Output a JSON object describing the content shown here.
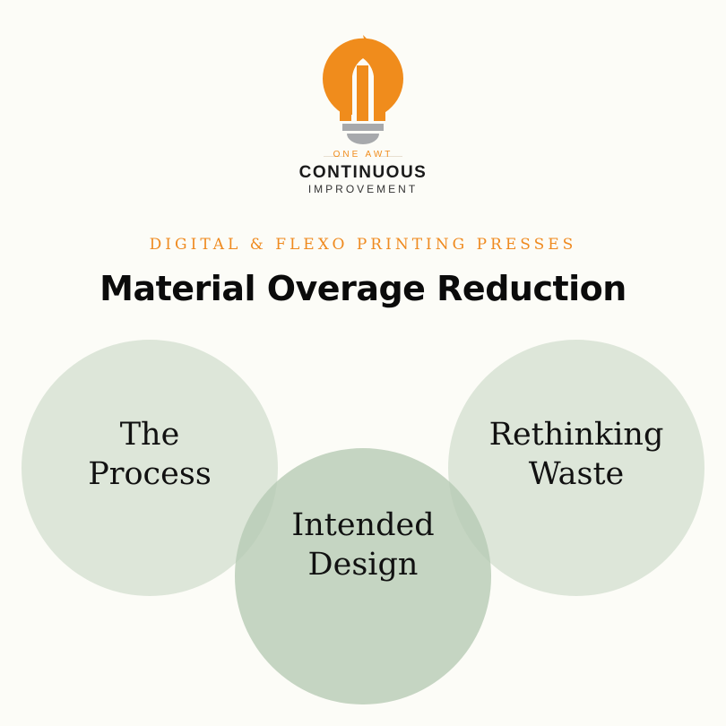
{
  "logo": {
    "small": "ONE AWT",
    "big": "CONTINUOUS",
    "sub": "IMPROVEMENT",
    "colors": {
      "orange": "#f08c1c",
      "gray": "#a7a9ac"
    }
  },
  "header": {
    "kicker": "DIGITAL & FLEXO PRINTING PRESSES",
    "title": "Material Overage Reduction",
    "kicker_color": "#ef8a1f"
  },
  "circles": [
    {
      "label": "The\nProcess"
    },
    {
      "label": "Intended\nDesign"
    },
    {
      "label": "Rethinking\nWaste"
    }
  ]
}
